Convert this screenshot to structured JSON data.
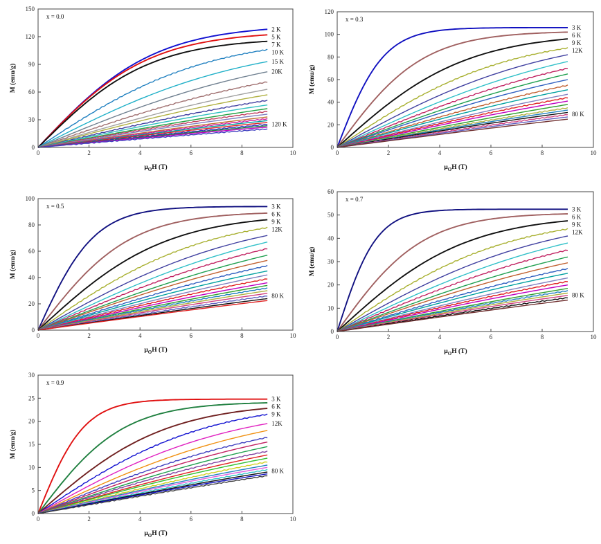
{
  "chart_data": [
    {
      "type": "line",
      "panel": "x = 0.0",
      "xlabel_main": "μ",
      "xlabel_sub": "O",
      "xlabel_rest": "H  (T)",
      "ylabel": "M (emu/g)",
      "xlim": [
        0,
        10
      ],
      "ylim": [
        0,
        150
      ],
      "xticks": [
        0,
        2,
        4,
        6,
        8,
        10
      ],
      "yticks": [
        0,
        30,
        60,
        90,
        120,
        150
      ],
      "x_max": 9,
      "series": [
        {
          "name": "2 K",
          "color": "#1010d0",
          "final": 128,
          "sat": 0.22
        },
        {
          "name": "5 K",
          "color": "#e01010",
          "final": 122,
          "sat": 0.23
        },
        {
          "name": "7 K",
          "color": "#101010",
          "final": 115,
          "sat": 0.23
        },
        {
          "name": "10 K",
          "color": "#2080c0",
          "final": 106,
          "sat": 0.15
        },
        {
          "name": "15 K",
          "color": "#20b0c8",
          "final": 93,
          "sat": 0.12
        },
        {
          "name": "20K",
          "color": "#708090",
          "final": 82,
          "sat": 0.1
        },
        {
          "name": "",
          "color": "#a07070",
          "final": 71,
          "sat": 0.09
        },
        {
          "name": "",
          "color": "#a0a0a0",
          "final": 63,
          "sat": 0.08
        },
        {
          "name": "",
          "color": "#b0b040",
          "final": 57,
          "sat": 0.08
        },
        {
          "name": "",
          "color": "#4040a0",
          "final": 51,
          "sat": 0.07
        },
        {
          "name": "",
          "color": "#30c0c0",
          "final": 46,
          "sat": 0.07
        },
        {
          "name": "",
          "color": "#20a040",
          "final": 42,
          "sat": 0.06
        },
        {
          "name": "",
          "color": "#c04060",
          "final": 39,
          "sat": 0.06
        },
        {
          "name": "",
          "color": "#8080c0",
          "final": 36,
          "sat": 0.06
        },
        {
          "name": "",
          "color": "#c07030",
          "final": 33,
          "sat": 0.05
        },
        {
          "name": "",
          "color": "#d020a0",
          "final": 31,
          "sat": 0.05
        },
        {
          "name": "",
          "color": "#00a0a0",
          "final": 29,
          "sat": 0.05
        },
        {
          "name": "",
          "color": "#e02020",
          "final": 27,
          "sat": 0.05
        },
        {
          "name": "",
          "color": "#3030c0",
          "final": 25,
          "sat": 0.04
        },
        {
          "name": "",
          "color": "#208040",
          "final": 23.5,
          "sat": 0.04
        },
        {
          "name": "",
          "color": "#c000c0",
          "final": 22,
          "sat": 0.04
        },
        {
          "name": "120 K",
          "color": "#4040c0",
          "final": 20,
          "sat": 0.04
        }
      ]
    },
    {
      "type": "line",
      "panel": "x = 0.3",
      "xlabel_main": "μ",
      "xlabel_sub": "O",
      "xlabel_rest": "H  (T)",
      "ylabel": "M (emu/g)",
      "xlim": [
        0,
        10
      ],
      "ylim": [
        0,
        120
      ],
      "xticks": [
        0,
        2,
        4,
        6,
        8,
        10
      ],
      "yticks": [
        0,
        20,
        40,
        60,
        80,
        100,
        120
      ],
      "x_max": 9,
      "series": [
        {
          "name": "3 K",
          "color": "#1010c0",
          "final": 106,
          "sat": 0.55
        },
        {
          "name": "6 K",
          "color": "#a06060",
          "final": 102,
          "sat": 0.3
        },
        {
          "name": "9 K",
          "color": "#101010",
          "final": 96,
          "sat": 0.2
        },
        {
          "name": "12K",
          "color": "#a8b030",
          "final": 88,
          "sat": 0.15
        },
        {
          "name": "",
          "color": "#4040a0",
          "final": 82,
          "sat": 0.12
        },
        {
          "name": "",
          "color": "#30c0c8",
          "final": 76,
          "sat": 0.1
        },
        {
          "name": "",
          "color": "#c02060",
          "final": 70,
          "sat": 0.09
        },
        {
          "name": "",
          "color": "#20a050",
          "final": 65,
          "sat": 0.08
        },
        {
          "name": "",
          "color": "#3060c0",
          "final": 60,
          "sat": 0.08
        },
        {
          "name": "",
          "color": "#c06030",
          "final": 55,
          "sat": 0.07
        },
        {
          "name": "",
          "color": "#00a0a0",
          "final": 51,
          "sat": 0.07
        },
        {
          "name": "",
          "color": "#8080c0",
          "final": 47,
          "sat": 0.06
        },
        {
          "name": "",
          "color": "#e02020",
          "final": 44,
          "sat": 0.06
        },
        {
          "name": "",
          "color": "#c000c0",
          "final": 41,
          "sat": 0.06
        },
        {
          "name": "",
          "color": "#30a030",
          "final": 38,
          "sat": 0.05
        },
        {
          "name": "",
          "color": "#b0b040",
          "final": 35,
          "sat": 0.05
        },
        {
          "name": "",
          "color": "#2080c0",
          "final": 33,
          "sat": 0.05
        },
        {
          "name": "",
          "color": "#101010",
          "final": 31,
          "sat": 0.05
        },
        {
          "name": "",
          "color": "#d04080",
          "final": 29,
          "sat": 0.04
        },
        {
          "name": "",
          "color": "#6060c0",
          "final": 27,
          "sat": 0.04
        },
        {
          "name": "80 K",
          "color": "#703030",
          "final": 25,
          "sat": 0.04
        }
      ]
    },
    {
      "type": "line",
      "panel": "x = 0.5",
      "xlabel_main": "μ",
      "xlabel_sub": "O",
      "xlabel_rest": "H  (T)",
      "ylabel": "M (emu/g)",
      "xlim": [
        0,
        10
      ],
      "ylim": [
        0,
        100
      ],
      "xticks": [
        0,
        2,
        4,
        6,
        8,
        10
      ],
      "yticks": [
        0,
        20,
        40,
        60,
        80,
        100
      ],
      "x_max": 9,
      "series": [
        {
          "name": "3 K",
          "color": "#101080",
          "final": 94,
          "sat": 0.45
        },
        {
          "name": "6 K",
          "color": "#a06060",
          "final": 89,
          "sat": 0.28
        },
        {
          "name": "9 K",
          "color": "#101010",
          "final": 84,
          "sat": 0.2
        },
        {
          "name": "12K",
          "color": "#a8b030",
          "final": 78,
          "sat": 0.15
        },
        {
          "name": "",
          "color": "#4040a0",
          "final": 72,
          "sat": 0.12
        },
        {
          "name": "",
          "color": "#30c0c8",
          "final": 67,
          "sat": 0.1
        },
        {
          "name": "",
          "color": "#c02060",
          "final": 62,
          "sat": 0.09
        },
        {
          "name": "",
          "color": "#20a050",
          "final": 57,
          "sat": 0.08
        },
        {
          "name": "",
          "color": "#c06030",
          "final": 53,
          "sat": 0.08
        },
        {
          "name": "",
          "color": "#3060c0",
          "final": 49,
          "sat": 0.07
        },
        {
          "name": "",
          "color": "#00a0a0",
          "final": 45,
          "sat": 0.07
        },
        {
          "name": "",
          "color": "#8080c0",
          "final": 42,
          "sat": 0.06
        },
        {
          "name": "",
          "color": "#e02020",
          "final": 39,
          "sat": 0.06
        },
        {
          "name": "",
          "color": "#c000c0",
          "final": 36,
          "sat": 0.06
        },
        {
          "name": "",
          "color": "#30a030",
          "final": 34,
          "sat": 0.05
        },
        {
          "name": "",
          "color": "#2080c0",
          "final": 32,
          "sat": 0.05
        },
        {
          "name": "",
          "color": "#b0b040",
          "final": 30,
          "sat": 0.05
        },
        {
          "name": "",
          "color": "#d04080",
          "final": 28,
          "sat": 0.05
        },
        {
          "name": "",
          "color": "#6060c0",
          "final": 26,
          "sat": 0.04
        },
        {
          "name": "",
          "color": "#101010",
          "final": 24,
          "sat": 0.04
        },
        {
          "name": "80 K",
          "color": "#e02020",
          "final": 22.5,
          "sat": 0.04
        }
      ]
    },
    {
      "type": "line",
      "panel": "x = 0.7",
      "xlabel_main": "μ",
      "xlabel_sub": "O",
      "xlabel_rest": "H  (T)",
      "ylabel": "M (emu/g)",
      "xlim": [
        0,
        10
      ],
      "ylim": [
        0,
        60
      ],
      "xticks": [
        0,
        2,
        4,
        6,
        8,
        10
      ],
      "yticks": [
        0,
        10,
        20,
        30,
        40,
        50,
        60
      ],
      "x_max": 9,
      "series": [
        {
          "name": "3 K",
          "color": "#101080",
          "final": 52.5,
          "sat": 0.65
        },
        {
          "name": "6 K",
          "color": "#a06060",
          "final": 50.5,
          "sat": 0.3
        },
        {
          "name": "9 K",
          "color": "#101010",
          "final": 47.5,
          "sat": 0.2
        },
        {
          "name": "12K",
          "color": "#a8b030",
          "final": 44,
          "sat": 0.15
        },
        {
          "name": "",
          "color": "#4040a0",
          "final": 41,
          "sat": 0.12
        },
        {
          "name": "",
          "color": "#30c0c8",
          "final": 38,
          "sat": 0.1
        },
        {
          "name": "",
          "color": "#c02060",
          "final": 35,
          "sat": 0.09
        },
        {
          "name": "",
          "color": "#20a050",
          "final": 32,
          "sat": 0.08
        },
        {
          "name": "",
          "color": "#c06030",
          "final": 29.5,
          "sat": 0.08
        },
        {
          "name": "",
          "color": "#3060c0",
          "final": 27,
          "sat": 0.07
        },
        {
          "name": "",
          "color": "#00a0a0",
          "final": 25,
          "sat": 0.07
        },
        {
          "name": "",
          "color": "#8080c0",
          "final": 23,
          "sat": 0.06
        },
        {
          "name": "",
          "color": "#e02020",
          "final": 21.5,
          "sat": 0.06
        },
        {
          "name": "",
          "color": "#c000c0",
          "final": 20,
          "sat": 0.06
        },
        {
          "name": "",
          "color": "#30a030",
          "final": 18.5,
          "sat": 0.05
        },
        {
          "name": "",
          "color": "#2080c0",
          "final": 17.5,
          "sat": 0.05
        },
        {
          "name": "",
          "color": "#b0b040",
          "final": 16.5,
          "sat": 0.05
        },
        {
          "name": "",
          "color": "#d04080",
          "final": 15.5,
          "sat": 0.05
        },
        {
          "name": "",
          "color": "#101010",
          "final": 14.5,
          "sat": 0.04
        },
        {
          "name": "80 K",
          "color": "#703030",
          "final": 13.5,
          "sat": 0.04
        }
      ]
    },
    {
      "type": "line",
      "panel": "x = 0.9",
      "xlabel_main": "μ",
      "xlabel_sub": "O",
      "xlabel_rest": "H  (T)",
      "ylabel": "M (emu/g)",
      "xlim": [
        0,
        10
      ],
      "ylim": [
        0,
        30
      ],
      "xticks": [
        0,
        2,
        4,
        6,
        8,
        10
      ],
      "yticks": [
        0,
        5,
        10,
        15,
        20,
        25,
        30
      ],
      "x_max": 9,
      "series": [
        {
          "name": "3 K",
          "color": "#e01010",
          "final": 24.8,
          "sat": 0.55
        },
        {
          "name": "6 K",
          "color": "#208040",
          "final": 24,
          "sat": 0.3
        },
        {
          "name": "9 K",
          "color": "#702020",
          "final": 22.8,
          "sat": 0.2
        },
        {
          "name": "",
          "color": "#1010d0",
          "final": 21.5,
          "sat": 0.15
        },
        {
          "name": "12K",
          "color": "#e020c0",
          "final": 19.5,
          "sat": 0.13
        },
        {
          "name": "",
          "color": "#f09010",
          "final": 18,
          "sat": 0.11
        },
        {
          "name": "",
          "color": "#4040c0",
          "final": 16.5,
          "sat": 0.1
        },
        {
          "name": "",
          "color": "#c02060",
          "final": 15.5,
          "sat": 0.09
        },
        {
          "name": "",
          "color": "#20a050",
          "final": 14.5,
          "sat": 0.08
        },
        {
          "name": "",
          "color": "#8040a0",
          "final": 13.5,
          "sat": 0.08
        },
        {
          "name": "",
          "color": "#e02020",
          "final": 12.7,
          "sat": 0.07
        },
        {
          "name": "",
          "color": "#30c030",
          "final": 12,
          "sat": 0.07
        },
        {
          "name": "",
          "color": "#d0d020",
          "final": 11.2,
          "sat": 0.06
        },
        {
          "name": "",
          "color": "#2080c0",
          "final": 10.5,
          "sat": 0.06
        },
        {
          "name": "",
          "color": "#e060e0",
          "final": 10,
          "sat": 0.06
        },
        {
          "name": "",
          "color": "#30c0c8",
          "final": 9.5,
          "sat": 0.05
        },
        {
          "name": "",
          "color": "#101010",
          "final": 9,
          "sat": 0.05
        },
        {
          "name": "",
          "color": "#1010c0",
          "final": 8.6,
          "sat": 0.05
        },
        {
          "name": "80 K",
          "color": "#404040",
          "final": 8.2,
          "sat": 0.04
        }
      ]
    }
  ]
}
